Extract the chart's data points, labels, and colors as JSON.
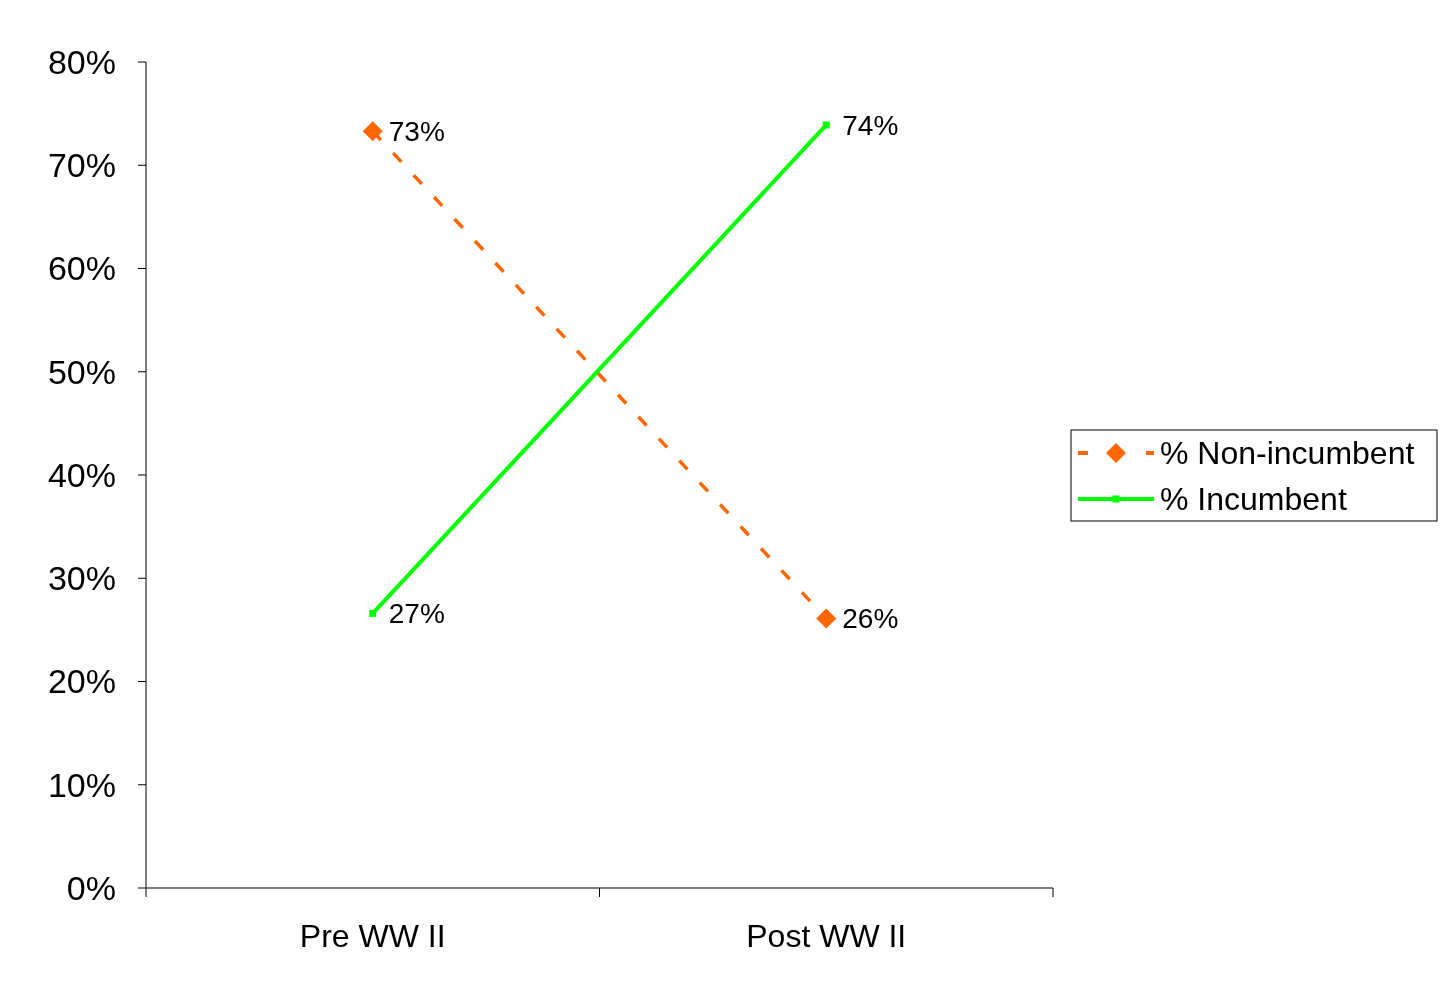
{
  "chart_data": {
    "type": "line",
    "categories": [
      "Pre WW II",
      "Post WW II"
    ],
    "series": [
      {
        "name": "% Non-incumbent",
        "color": "#ff6600",
        "values": [
          73.3,
          26.1
        ],
        "value_labels": [
          "73%",
          "26%"
        ],
        "marker": "diamond",
        "line_style": "dashed"
      },
      {
        "name": "% Incumbent",
        "color": "#00ff00",
        "values": [
          26.6,
          73.9
        ],
        "value_labels": [
          "27%",
          "74%"
        ],
        "marker": "square",
        "line_style": "solid"
      }
    ],
    "ylim": [
      0,
      80
    ],
    "yticks": [
      {
        "value": 0,
        "label": "0%"
      },
      {
        "value": 10,
        "label": "10%"
      },
      {
        "value": 20,
        "label": "20%"
      },
      {
        "value": 30,
        "label": "30%"
      },
      {
        "value": 40,
        "label": "40%"
      },
      {
        "value": 50,
        "label": "50%"
      },
      {
        "value": 60,
        "label": "60%"
      },
      {
        "value": 70,
        "label": "70%"
      },
      {
        "value": 80,
        "label": "80%"
      }
    ],
    "grid": false,
    "legend": "right"
  }
}
